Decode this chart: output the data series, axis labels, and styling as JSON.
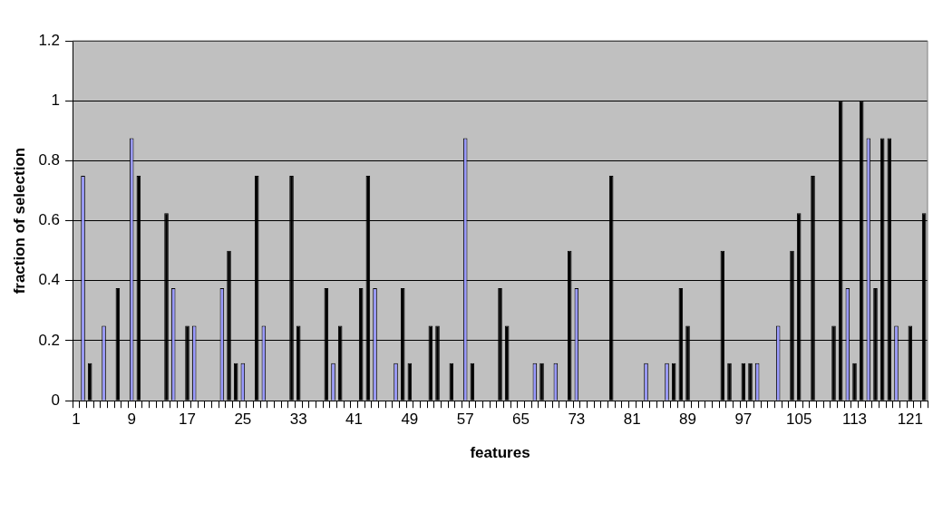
{
  "chart_data": {
    "type": "bar",
    "xlabel": "features",
    "ylabel": "fraction of selection",
    "categories": [
      "1",
      null,
      null,
      null,
      null,
      null,
      null,
      null,
      "9",
      null,
      null,
      null,
      null,
      null,
      null,
      null,
      "17",
      null,
      null,
      null,
      null,
      null,
      null,
      null,
      "25",
      null,
      null,
      null,
      null,
      null,
      null,
      null,
      "33",
      null,
      null,
      null,
      null,
      null,
      null,
      null,
      "41",
      null,
      null,
      null,
      null,
      null,
      null,
      null,
      "49",
      null,
      null,
      null,
      null,
      null,
      null,
      null,
      "57",
      null,
      null,
      null,
      null,
      null,
      null,
      null,
      "65",
      null,
      null,
      null,
      null,
      null,
      null,
      null,
      "73",
      null,
      null,
      null,
      null,
      null,
      null,
      null,
      "81",
      null,
      null,
      null,
      null,
      null,
      null,
      null,
      "89",
      null,
      null,
      null,
      null,
      null,
      null,
      null,
      "97",
      null,
      null,
      null,
      null,
      null,
      null,
      null,
      "105",
      null,
      null,
      null,
      null,
      null,
      null,
      null,
      "113",
      null,
      null,
      null,
      null,
      null,
      null,
      null,
      "121",
      null,
      null
    ],
    "values": [
      0,
      0.75,
      0.125,
      0,
      0.25,
      0,
      0.375,
      0,
      0.875,
      0.75,
      0,
      0,
      0,
      0.625,
      0.375,
      0,
      0.25,
      0.25,
      0,
      0,
      0,
      0.375,
      0.5,
      0.125,
      0.125,
      0,
      0.75,
      0.25,
      0,
      0,
      0,
      0.75,
      0.25,
      0,
      0,
      0,
      0.375,
      0.125,
      0.25,
      0,
      0,
      0.375,
      0.75,
      0.375,
      0,
      0,
      0.125,
      0.375,
      0.125,
      0,
      0,
      0.25,
      0.25,
      0,
      0.125,
      0,
      0.875,
      0.125,
      0,
      0,
      0,
      0.375,
      0.25,
      0,
      0,
      0,
      0.125,
      0.125,
      0,
      0.125,
      0,
      0.5,
      0.375,
      0,
      0,
      0,
      0,
      0.75,
      0,
      0,
      0,
      0,
      0.125,
      0,
      0,
      0.125,
      0.125,
      0.375,
      0.25,
      0,
      0,
      0,
      0,
      0.5,
      0.125,
      0,
      0.125,
      0.125,
      0.125,
      0,
      0,
      0.25,
      0,
      0.5,
      0.625,
      0,
      0.75,
      0,
      0,
      0.25,
      1,
      0.375,
      0.125,
      1,
      0.875,
      0.375,
      0.875,
      0.875,
      0.25,
      0,
      0.25,
      0,
      0.625
    ],
    "colors": [
      "#000000",
      "#9999ff",
      "#000000",
      "#000000",
      "#9999ff",
      "#000000",
      "#000000",
      "#000000",
      "#9999ff",
      "#000000",
      "#000000",
      "#000000",
      "#000000",
      "#000000",
      "#9999ff",
      "#000000",
      "#000000",
      "#9999ff",
      "#000000",
      "#000000",
      "#000000",
      "#9999ff",
      "#000000",
      "#000000",
      "#9999ff",
      "#000000",
      "#000000",
      "#9999ff",
      "#000000",
      "#000000",
      "#000000",
      "#000000",
      "#000000",
      "#000000",
      "#000000",
      "#000000",
      "#000000",
      "#9999ff",
      "#000000",
      "#000000",
      "#000000",
      "#000000",
      "#000000",
      "#9999ff",
      "#000000",
      "#000000",
      "#9999ff",
      "#000000",
      "#000000",
      "#000000",
      "#000000",
      "#000000",
      "#000000",
      "#000000",
      "#000000",
      "#000000",
      "#9999ff",
      "#000000",
      "#000000",
      "#000000",
      "#000000",
      "#000000",
      "#000000",
      "#000000",
      "#000000",
      "#000000",
      "#9999ff",
      "#000000",
      "#000000",
      "#9999ff",
      "#000000",
      "#000000",
      "#9999ff",
      "#000000",
      "#000000",
      "#000000",
      "#000000",
      "#000000",
      "#000000",
      "#000000",
      "#000000",
      "#000000",
      "#9999ff",
      "#000000",
      "#000000",
      "#9999ff",
      "#000000",
      "#000000",
      "#000000",
      "#000000",
      "#000000",
      "#000000",
      "#000000",
      "#000000",
      "#000000",
      "#000000",
      "#000000",
      "#000000",
      "#9999ff",
      "#000000",
      "#000000",
      "#9999ff",
      "#000000",
      "#000000",
      "#000000",
      "#000000",
      "#000000",
      "#000000",
      "#000000",
      "#000000",
      "#000000",
      "#9999ff",
      "#000000",
      "#000000",
      "#9999ff",
      "#000000",
      "#000000",
      "#000000",
      "#9999ff",
      "#000000",
      "#000000",
      "#000000",
      "#000000"
    ],
    "ylim": [
      0,
      1.2
    ],
    "yticks": [
      0,
      0.2,
      0.4,
      0.6,
      0.8,
      1,
      1.2
    ],
    "grid": "y",
    "legend": false
  }
}
